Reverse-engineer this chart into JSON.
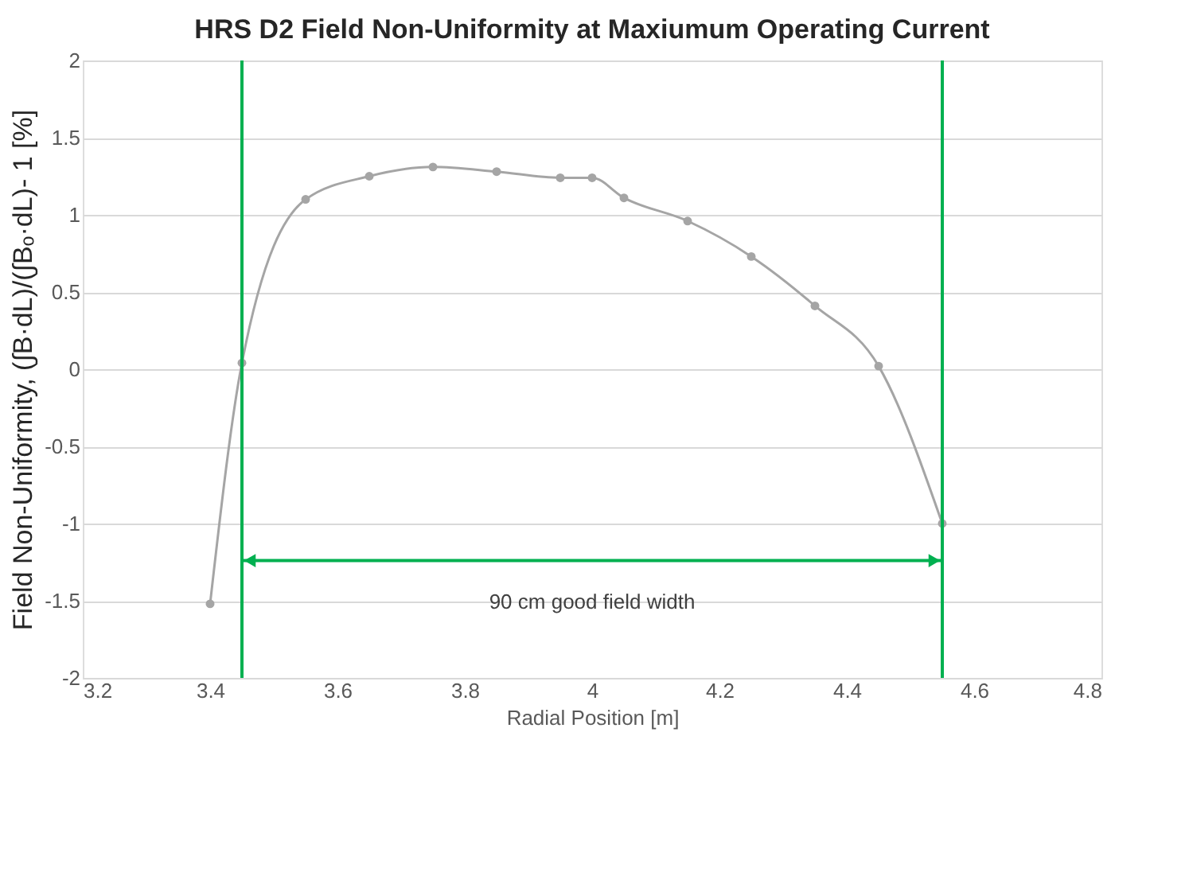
{
  "chart_data": {
    "type": "line",
    "title": "HRS D2 Field Non-Uniformity at Maxiumum Operating Current",
    "xlabel": "Radial Position [m]",
    "ylabel": "Field Non-Uniformity, (∫B·dL)/(∫Bₒ·dL)- 1 [%]",
    "series": [
      {
        "color": "#a5a5a5",
        "x": [
          3.4,
          3.45,
          3.55,
          3.65,
          3.75,
          3.85,
          3.95,
          4.0,
          4.05,
          4.15,
          4.25,
          4.35,
          4.45,
          4.55
        ],
        "values": [
          -1.52,
          0.04,
          1.1,
          1.25,
          1.31,
          1.28,
          1.24,
          1.24,
          1.11,
          0.96,
          0.73,
          0.41,
          0.02,
          -1.0
        ]
      }
    ],
    "xlim": [
      3.2,
      4.8
    ],
    "xticks": [
      3.2,
      3.4,
      3.6,
      3.8,
      4,
      4.2,
      4.4,
      4.6,
      4.8
    ],
    "ylim": [
      -2,
      2
    ],
    "yticks": [
      -2,
      -1.5,
      -1,
      -0.5,
      0,
      0.5,
      1,
      1.5,
      2
    ],
    "ref_lines": [
      {
        "axis": "x",
        "value": 3.45,
        "color": "#00b050"
      },
      {
        "axis": "x",
        "value": 4.55,
        "color": "#00b050"
      }
    ],
    "annotations": [
      "90 cm good field width"
    ],
    "grid": "y",
    "marker": "circle",
    "line_style": "solid"
  }
}
